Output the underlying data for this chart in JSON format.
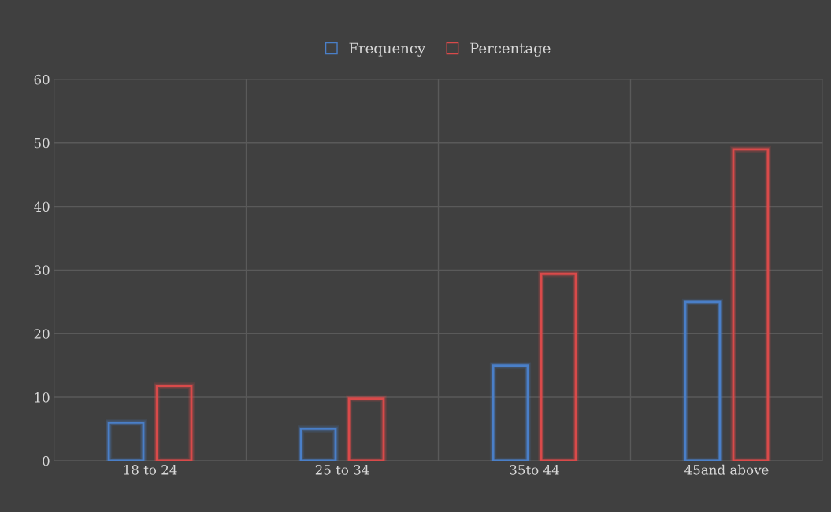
{
  "chart_data": {
    "type": "bar",
    "categories": [
      "18 to 24",
      "25 to 34",
      "35to 44",
      "45and above"
    ],
    "series": [
      {
        "name": "Frequency",
        "color": "#4a7fc8",
        "values": [
          6,
          5,
          15,
          25
        ]
      },
      {
        "name": "Percentage",
        "color": "#d94a4a",
        "values": [
          11.8,
          9.8,
          29.4,
          49
        ]
      }
    ],
    "ylim": [
      0,
      60
    ],
    "yticks": [
      0,
      10,
      20,
      30,
      40,
      50,
      60
    ],
    "grid": true,
    "legend": "top"
  }
}
